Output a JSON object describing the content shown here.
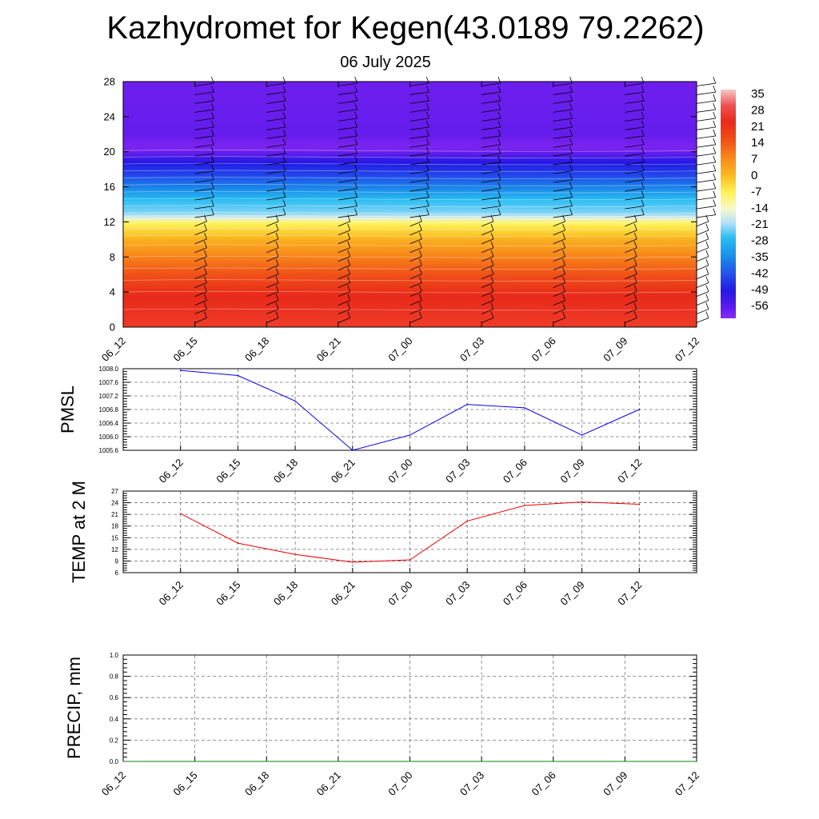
{
  "title": "Kazhydromet for Kegen(43.0189 79.2262)",
  "subtitle": "06 July 2025",
  "chart_data": [
    {
      "type": "heatmap",
      "name": "vertical-temperature-cross-section",
      "x_labels": [
        "06_12",
        "06_15",
        "06_18",
        "06_21",
        "07_00",
        "07_03",
        "07_06",
        "07_09",
        "07_12"
      ],
      "ylim": [
        0,
        28
      ],
      "y_ticks": [
        0,
        4,
        8,
        12,
        16,
        20,
        24,
        28
      ],
      "colorbar_labels": [
        "35",
        "28",
        "21",
        "14",
        "7",
        "0",
        "-7",
        "-14",
        "-21",
        "-28",
        "-35",
        "-42",
        "-49",
        "-56"
      ],
      "level_temperatures": [
        {
          "height": 0,
          "value": 28
        },
        {
          "height": 2,
          "value": 24
        },
        {
          "height": 4,
          "value": 20
        },
        {
          "height": 6,
          "value": 14
        },
        {
          "height": 8,
          "value": 8
        },
        {
          "height": 10,
          "value": 2
        },
        {
          "height": 12,
          "value": -8
        },
        {
          "height": 13,
          "value": -20
        },
        {
          "height": 15,
          "value": -30
        },
        {
          "height": 17,
          "value": -40
        },
        {
          "height": 19,
          "value": -50
        },
        {
          "height": 20.5,
          "value": -58
        },
        {
          "height": 22,
          "value": -55
        },
        {
          "height": 28,
          "value": -56
        }
      ],
      "wind_barb_columns": [
        "06_15",
        "06_18",
        "06_21",
        "07_00",
        "07_03",
        "07_06",
        "07_09",
        "07_12"
      ]
    },
    {
      "type": "line",
      "name": "pmsl",
      "ylabel": "PMSL",
      "x_labels": [
        "06_12",
        "06_15",
        "06_18",
        "06_21",
        "07_00",
        "07_03",
        "07_06",
        "07_09",
        "07_12"
      ],
      "y_ticks": [
        "1008.0",
        "1007.6",
        "1007.2",
        "1006.8",
        "1006.4",
        "1006.0",
        "1005.6"
      ],
      "ylim": [
        1005.6,
        1008.0
      ],
      "values": [
        1007.95,
        1007.8,
        1007.05,
        1005.6,
        1006.05,
        1006.95,
        1006.85,
        1006.05,
        1006.8
      ],
      "color": "#0000ee"
    },
    {
      "type": "line",
      "name": "temperature-2m",
      "ylabel": "TEMP at 2 M",
      "x_labels": [
        "06_12",
        "06_15",
        "06_18",
        "06_21",
        "07_00",
        "07_03",
        "07_06",
        "07_09",
        "07_12"
      ],
      "y_ticks": [
        "27",
        "24",
        "21",
        "18",
        "15",
        "12",
        "9",
        "6"
      ],
      "ylim": [
        6,
        27
      ],
      "values": [
        21.2,
        13.6,
        10.7,
        8.7,
        9.3,
        19.3,
        23.3,
        24.2,
        23.6
      ],
      "color": "#ee0000"
    },
    {
      "type": "line",
      "name": "precipitation",
      "ylabel": "PRECIP, mm",
      "x_labels": [
        "06_12",
        "06_15",
        "06_18",
        "06_21",
        "07_00",
        "07_03",
        "07_06",
        "07_09",
        "07_12"
      ],
      "y_ticks": [
        "1.0",
        "0.8",
        "0.6",
        "0.4",
        "0.2",
        "0.0"
      ],
      "ylim": [
        0,
        1
      ],
      "values": [
        0,
        0,
        0,
        0,
        0,
        0,
        0,
        0,
        0
      ],
      "color": "#008800"
    }
  ]
}
